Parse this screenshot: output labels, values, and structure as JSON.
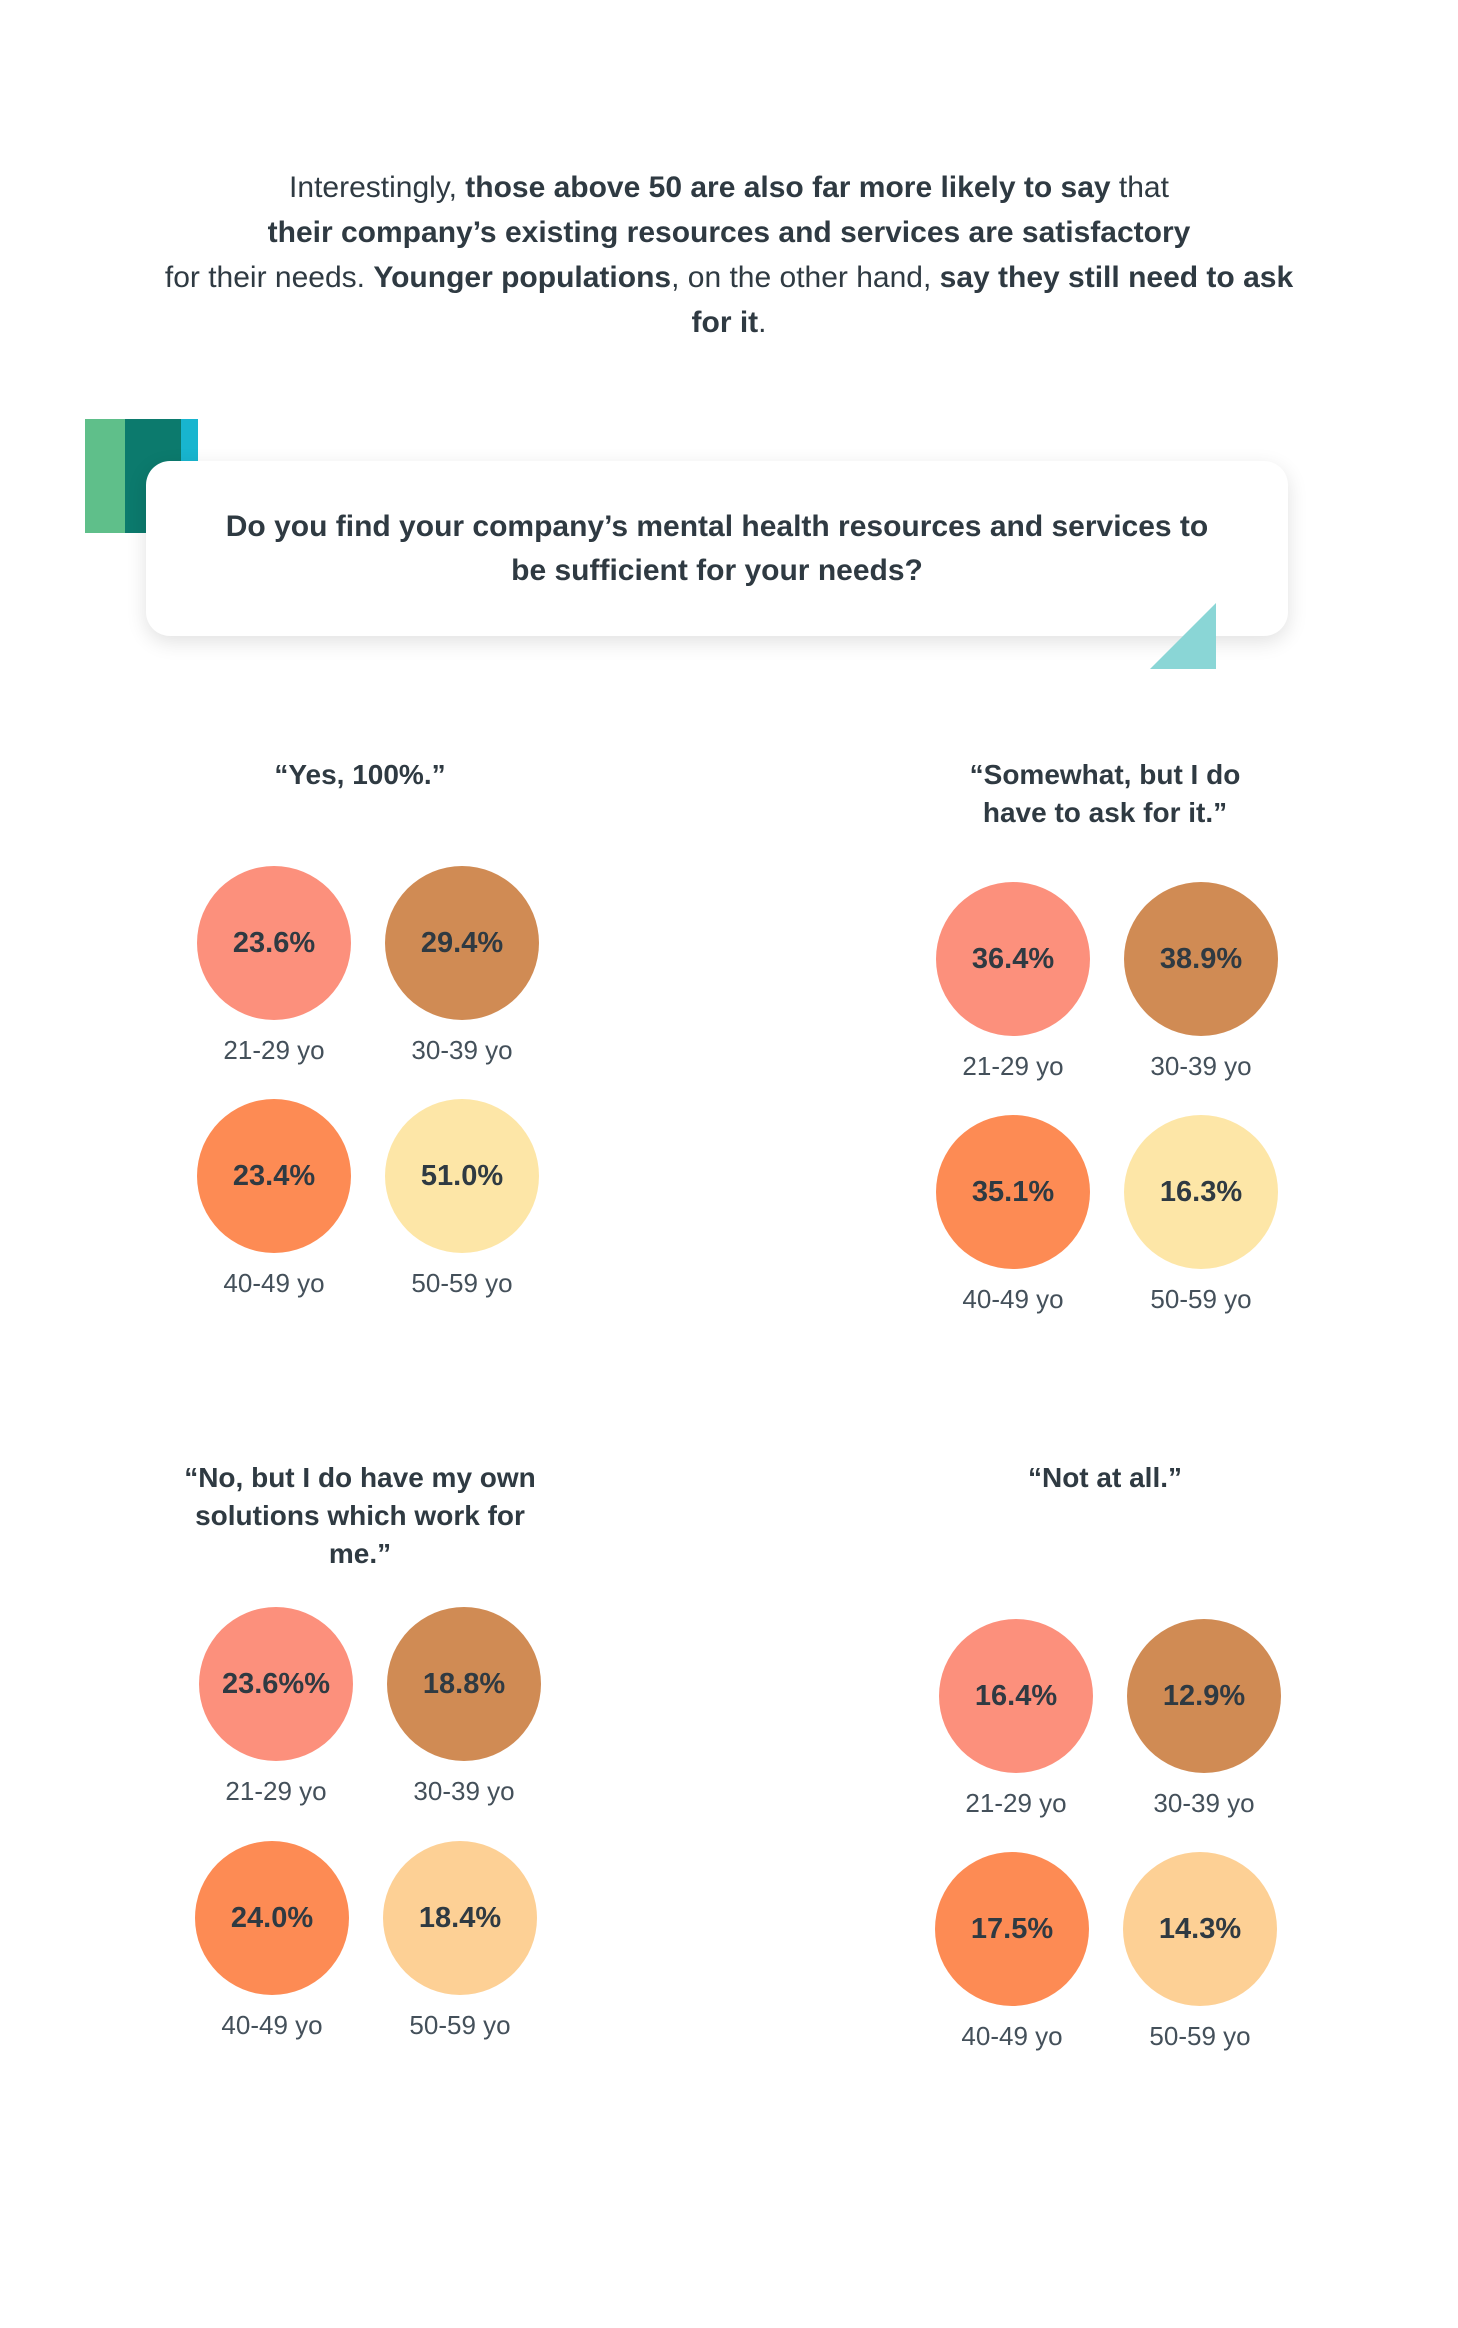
{
  "intro": {
    "p1": "Interestingly, ",
    "b1": "those above 50 are also far more likely to say",
    "p2": " that ",
    "b2": "their company’s existing resources and services are satisfactory",
    "p3": " for their needs. ",
    "b3": "Younger populations",
    "p4": ", on the other hand, ",
    "b4": "say they still need to ask for it",
    "p5": "."
  },
  "question": "Do you find your company’s mental health resources and services to be sufficient for your needs?",
  "colors": {
    "age_21_29": "#fc907c",
    "age_30_39": "#d08b54",
    "age_40_49": "#fd8b54",
    "age_50_59_light": "#fde6a7",
    "age_50_59_peach": "#fdd095",
    "bar_green": "#5fbf8a",
    "bar_teal": "#0c7a6d",
    "bar_cyan": "#18b5cf",
    "notch": "#8ad6d6"
  },
  "groups": [
    {
      "title": "“Yes, 100%.”",
      "items": [
        {
          "value": "23.6%",
          "age": "21-29 yo"
        },
        {
          "value": "29.4%",
          "age": "30-39 yo"
        },
        {
          "value": "23.4%",
          "age": "40-49 yo"
        },
        {
          "value": "51.0%",
          "age": "50-59 yo"
        }
      ]
    },
    {
      "title": "“Somewhat, but I do have to ask for it.”",
      "items": [
        {
          "value": "36.4%",
          "age": "21-29 yo"
        },
        {
          "value": "38.9%",
          "age": "30-39 yo"
        },
        {
          "value": "35.1%",
          "age": "40-49 yo"
        },
        {
          "value": "16.3%",
          "age": "50-59 yo"
        }
      ]
    },
    {
      "title": "“No, but I do have my own solutions which work for me.”",
      "items": [
        {
          "value": "23.6%%",
          "age": "21-29 yo"
        },
        {
          "value": "18.8%",
          "age": "30-39 yo"
        },
        {
          "value": "24.0%",
          "age": "40-49 yo"
        },
        {
          "value": "18.4%",
          "age": "50-59 yo"
        }
      ]
    },
    {
      "title": "“Not at all.”",
      "items": [
        {
          "value": "16.4%",
          "age": "21-29 yo"
        },
        {
          "value": "12.9%",
          "age": "30-39 yo"
        },
        {
          "value": "17.5%",
          "age": "40-49 yo"
        },
        {
          "value": "14.3%",
          "age": "50-59 yo"
        }
      ]
    }
  ]
}
